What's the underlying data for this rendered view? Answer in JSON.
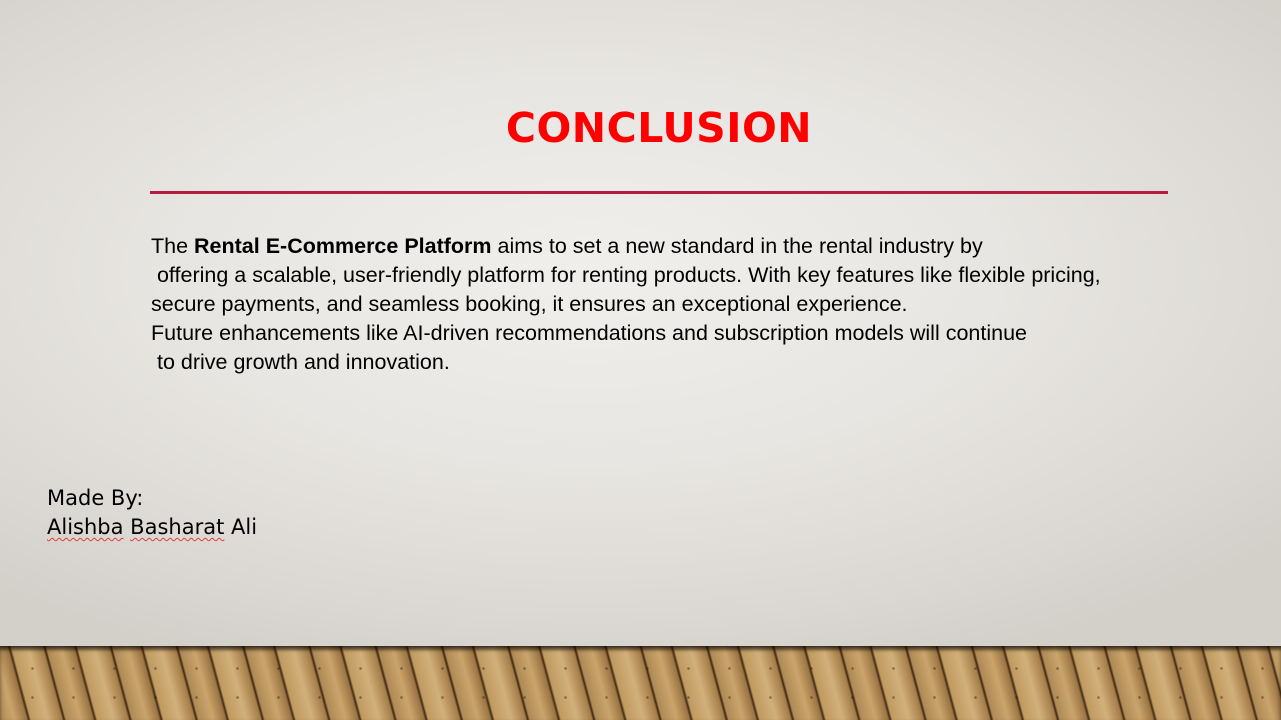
{
  "slide": {
    "title": "CONCLUSION",
    "body": {
      "l1_pre": "The ",
      "l1_bold": "Rental E-Commerce Platform",
      "l1_post": " aims to set a new standard in the rental industry by",
      "l2": " offering a scalable, user-friendly platform for renting products. With key features like flexible pricing,",
      "l3": "secure payments, and seamless booking, it ensures an exceptional experience.",
      "l4": "Future enhancements like AI-driven recommendations and subscription models will continue",
      "l5": " to drive growth and innovation."
    },
    "credits": {
      "label": "Made By:",
      "name_first": "Alishba",
      "name_middle": "Basharat",
      "name_last": "Ali"
    },
    "colors": {
      "title": "#ff0000",
      "rule": "#b81c3c",
      "spellcheck_underline": "#e23b3b"
    }
  }
}
